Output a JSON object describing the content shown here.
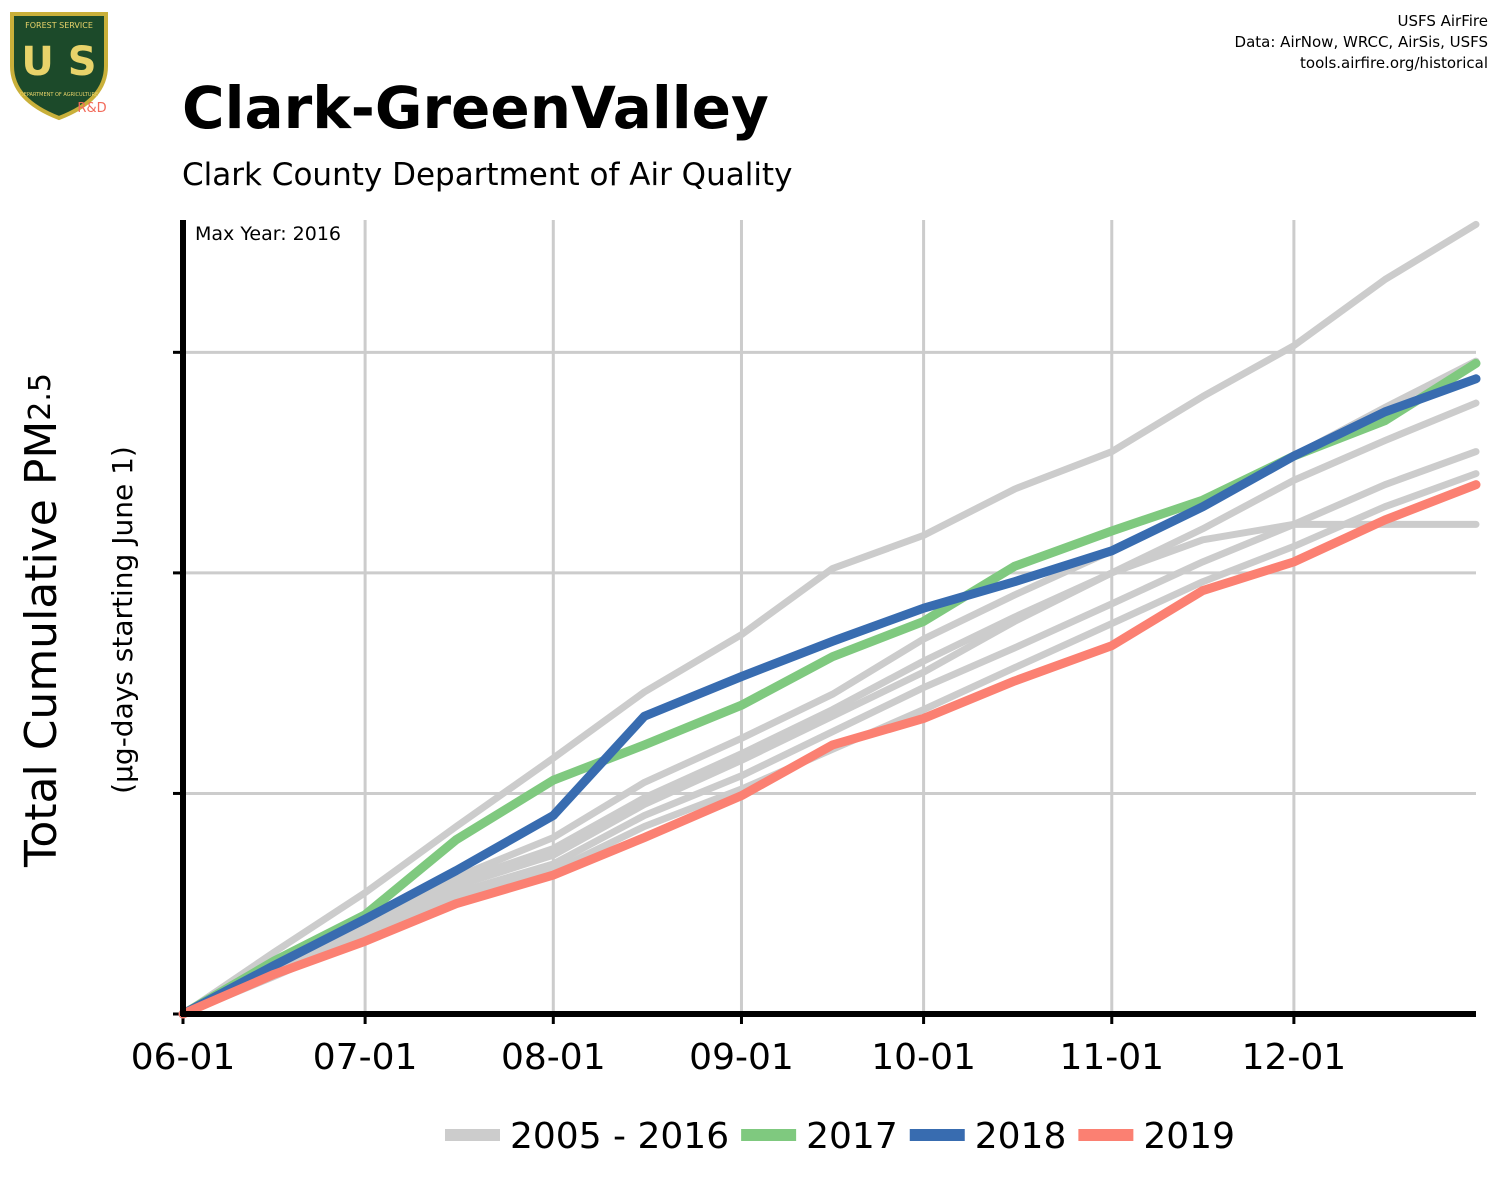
{
  "chart_data": {
    "type": "line",
    "title": "Clark-GreenValley",
    "subtitle": "Clark County Department of Air Quality",
    "credits": [
      "USFS AirFire",
      "Data: AirNow, WRCC, AirSis, USFS",
      "tools.airfire.org/historical"
    ],
    "logo": {
      "top": "FOREST SERVICE",
      "letters": "U S",
      "bottom": "DEPARTMENT OF AGRICULTURE",
      "badge": "R&D"
    },
    "annotation": "Max Year: 2016",
    "y_label": "Total Cumulative PM",
    "y_label_sub": "2.5",
    "y_label_units": "(µg-days starting June 1)",
    "x": [
      0,
      15,
      30,
      45,
      61,
      76,
      92,
      107,
      122,
      137,
      153,
      168,
      183,
      198,
      213
    ],
    "xlim": [
      0,
      213
    ],
    "xticks": [
      {
        "value": 0,
        "label": "06-01"
      },
      {
        "value": 30,
        "label": "07-01"
      },
      {
        "value": 61,
        "label": "08-01"
      },
      {
        "value": 92,
        "label": "09-01"
      },
      {
        "value": 122,
        "label": "10-01"
      },
      {
        "value": 153,
        "label": "11-01"
      },
      {
        "value": 183,
        "label": "12-01"
      }
    ],
    "ylim": [
      0,
      3.6
    ],
    "yticks": [
      0,
      1,
      2,
      3
    ],
    "grid": true,
    "legend": "bottom",
    "series": [
      {
        "name": "2005 - 2016",
        "color": "#cccccc",
        "values": [
          [
            0,
            0.28,
            0.55,
            0.85,
            1.16,
            1.46,
            1.72,
            2.02,
            2.17,
            2.38,
            2.55,
            2.8,
            3.03,
            3.33,
            3.58
          ],
          [
            0,
            0.22,
            0.45,
            0.62,
            0.8,
            1.05,
            1.25,
            1.45,
            1.7,
            1.9,
            2.1,
            2.3,
            2.53,
            2.75,
            2.96
          ],
          [
            0,
            0.2,
            0.4,
            0.58,
            0.72,
            0.95,
            1.15,
            1.35,
            1.55,
            1.78,
            2.0,
            2.2,
            2.42,
            2.6,
            2.77
          ],
          [
            0,
            0.18,
            0.38,
            0.55,
            0.68,
            0.9,
            1.08,
            1.28,
            1.48,
            1.66,
            1.86,
            2.05,
            2.22,
            2.4,
            2.55
          ],
          [
            0,
            0.2,
            0.42,
            0.6,
            0.75,
            0.98,
            1.18,
            1.38,
            1.6,
            1.8,
            2.0,
            2.15,
            2.22,
            2.22,
            2.22
          ],
          [
            0,
            0.17,
            0.35,
            0.52,
            0.65,
            0.85,
            1.02,
            1.2,
            1.38,
            1.57,
            1.77,
            1.96,
            2.12,
            2.3,
            2.45
          ]
        ]
      },
      {
        "name": "2017",
        "color": "#7fc97f",
        "values": [
          0,
          0.24,
          0.45,
          0.79,
          1.06,
          1.22,
          1.4,
          1.62,
          1.78,
          2.03,
          2.19,
          2.33,
          2.53,
          2.69,
          2.95
        ]
      },
      {
        "name": "2018",
        "color": "#386cb0",
        "values": [
          0,
          0.22,
          0.43,
          0.65,
          0.9,
          1.35,
          1.53,
          1.69,
          1.84,
          1.96,
          2.1,
          2.3,
          2.53,
          2.73,
          2.88
        ]
      },
      {
        "name": "2019",
        "color": "#fb8072",
        "values": [
          0,
          0.18,
          0.33,
          0.5,
          0.63,
          0.8,
          0.99,
          1.22,
          1.34,
          1.51,
          1.67,
          1.92,
          2.05,
          2.24,
          2.4
        ]
      }
    ]
  }
}
